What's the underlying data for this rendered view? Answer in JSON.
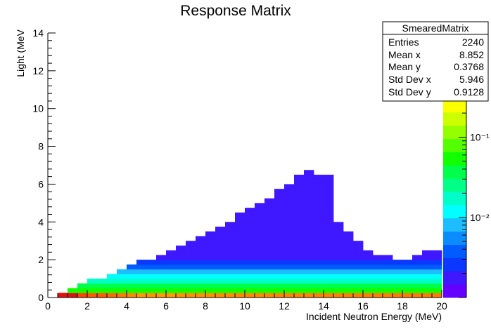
{
  "chart_data": {
    "type": "heatmap",
    "title": "Response Matrix",
    "xlabel": "Incident Neutron Energy (MeV)",
    "ylabel": "Light (MeV",
    "xlim": [
      0,
      20
    ],
    "ylim": [
      0,
      14
    ],
    "x_ticks": [
      "0",
      "2",
      "4",
      "6",
      "8",
      "10",
      "12",
      "14",
      "16",
      "18",
      "20"
    ],
    "y_ticks": [
      "0",
      "2",
      "4",
      "6",
      "8",
      "10",
      "12",
      "14"
    ],
    "bin_width_x": 0.5,
    "bin_width_y": 0.25,
    "color_scale": "log",
    "z_range": [
      0.001,
      0.3
    ],
    "colorbar_ticks": [
      {
        "value": 0.1,
        "label": "10⁻¹"
      },
      {
        "value": 0.01,
        "label": "10⁻²"
      }
    ],
    "palette": [
      "#6400ff",
      "#3f18ff",
      "#0c37ff",
      "#005cff",
      "#0a8cff",
      "#1ebdff",
      "#00ffff",
      "#00ffc8",
      "#00ff87",
      "#00ff4a",
      "#12ff00",
      "#54ff00",
      "#95ff00",
      "#ccff00",
      "#fbff00"
    ],
    "band_levels": [
      0.18,
      0.06,
      0.035,
      0.02,
      0.012,
      0.007,
      0.004,
      0.0025,
      0.0016
    ],
    "first_row_colors": [
      "#e01010",
      "#e01010",
      "#ff4400",
      "#ff5a00",
      "#ff5a00",
      "#ff6a00",
      "#ff7a00",
      "#ff8800",
      "#ff9a00",
      "#ff9400",
      "#ff9a00",
      "#ff9a00",
      "#ff9400",
      "#ff9000",
      "#ff9000",
      "#ff9000",
      "#ff8c00",
      "#ff8c00",
      "#ff8800",
      "#ff8800",
      "#ff8800",
      "#ff8800",
      "#ff8400",
      "#ff8400",
      "#ff8400",
      "#ff8400",
      "#ff8000",
      "#ff8000",
      "#ff8000",
      "#ff8000",
      "#ff8000",
      "#ff8000",
      "#ff8000",
      "#ff8000",
      "#ff7c00",
      "#ff7c00",
      "#ff7c00",
      "#ff7c00",
      "#ff7c00"
    ],
    "column_tops": [
      {
        "x": 0.5,
        "top": 0.25
      },
      {
        "x": 1.0,
        "top": 0.5
      },
      {
        "x": 1.5,
        "top": 0.75
      },
      {
        "x": 2.0,
        "top": 1.0
      },
      {
        "x": 2.5,
        "top": 1.0
      },
      {
        "x": 3.0,
        "top": 1.25
      },
      {
        "x": 3.5,
        "top": 1.5
      },
      {
        "x": 4.0,
        "top": 1.75
      },
      {
        "x": 4.5,
        "top": 2.0
      },
      {
        "x": 5.0,
        "top": 2.0
      },
      {
        "x": 5.5,
        "top": 2.25
      },
      {
        "x": 6.0,
        "top": 2.5
      },
      {
        "x": 6.5,
        "top": 2.75
      },
      {
        "x": 7.0,
        "top": 3.0
      },
      {
        "x": 7.5,
        "top": 3.25
      },
      {
        "x": 8.0,
        "top": 3.5
      },
      {
        "x": 8.5,
        "top": 3.75
      },
      {
        "x": 9.0,
        "top": 4.0
      },
      {
        "x": 9.5,
        "top": 4.5
      },
      {
        "x": 10.0,
        "top": 4.75
      },
      {
        "x": 10.5,
        "top": 5.0
      },
      {
        "x": 11.0,
        "top": 5.25
      },
      {
        "x": 11.5,
        "top": 5.75
      },
      {
        "x": 12.0,
        "top": 6.0
      },
      {
        "x": 12.5,
        "top": 6.5
      },
      {
        "x": 13.0,
        "top": 6.75
      },
      {
        "x": 13.5,
        "top": 6.5
      },
      {
        "x": 14.0,
        "top": 6.5
      },
      {
        "x": 14.5,
        "top": 4.0
      },
      {
        "x": 15.0,
        "top": 3.5
      },
      {
        "x": 15.5,
        "top": 3.0
      },
      {
        "x": 16.0,
        "top": 2.5
      },
      {
        "x": 16.5,
        "top": 2.25
      },
      {
        "x": 17.0,
        "top": 2.25
      },
      {
        "x": 17.5,
        "top": 2.0
      },
      {
        "x": 18.0,
        "top": 2.0
      },
      {
        "x": 18.5,
        "top": 2.25
      },
      {
        "x": 19.0,
        "top": 2.5
      },
      {
        "x": 19.5,
        "top": 2.5
      }
    ],
    "stats_box": {
      "title": "SmearedMatrix",
      "rows": [
        {
          "label": "Entries",
          "value": "2240"
        },
        {
          "label": "Mean x",
          "value": "8.852"
        },
        {
          "label": "Mean y",
          "value": "0.3768"
        },
        {
          "label": "Std Dev x",
          "value": "5.946"
        },
        {
          "label": "Std Dev y",
          "value": "0.9128"
        }
      ]
    }
  }
}
